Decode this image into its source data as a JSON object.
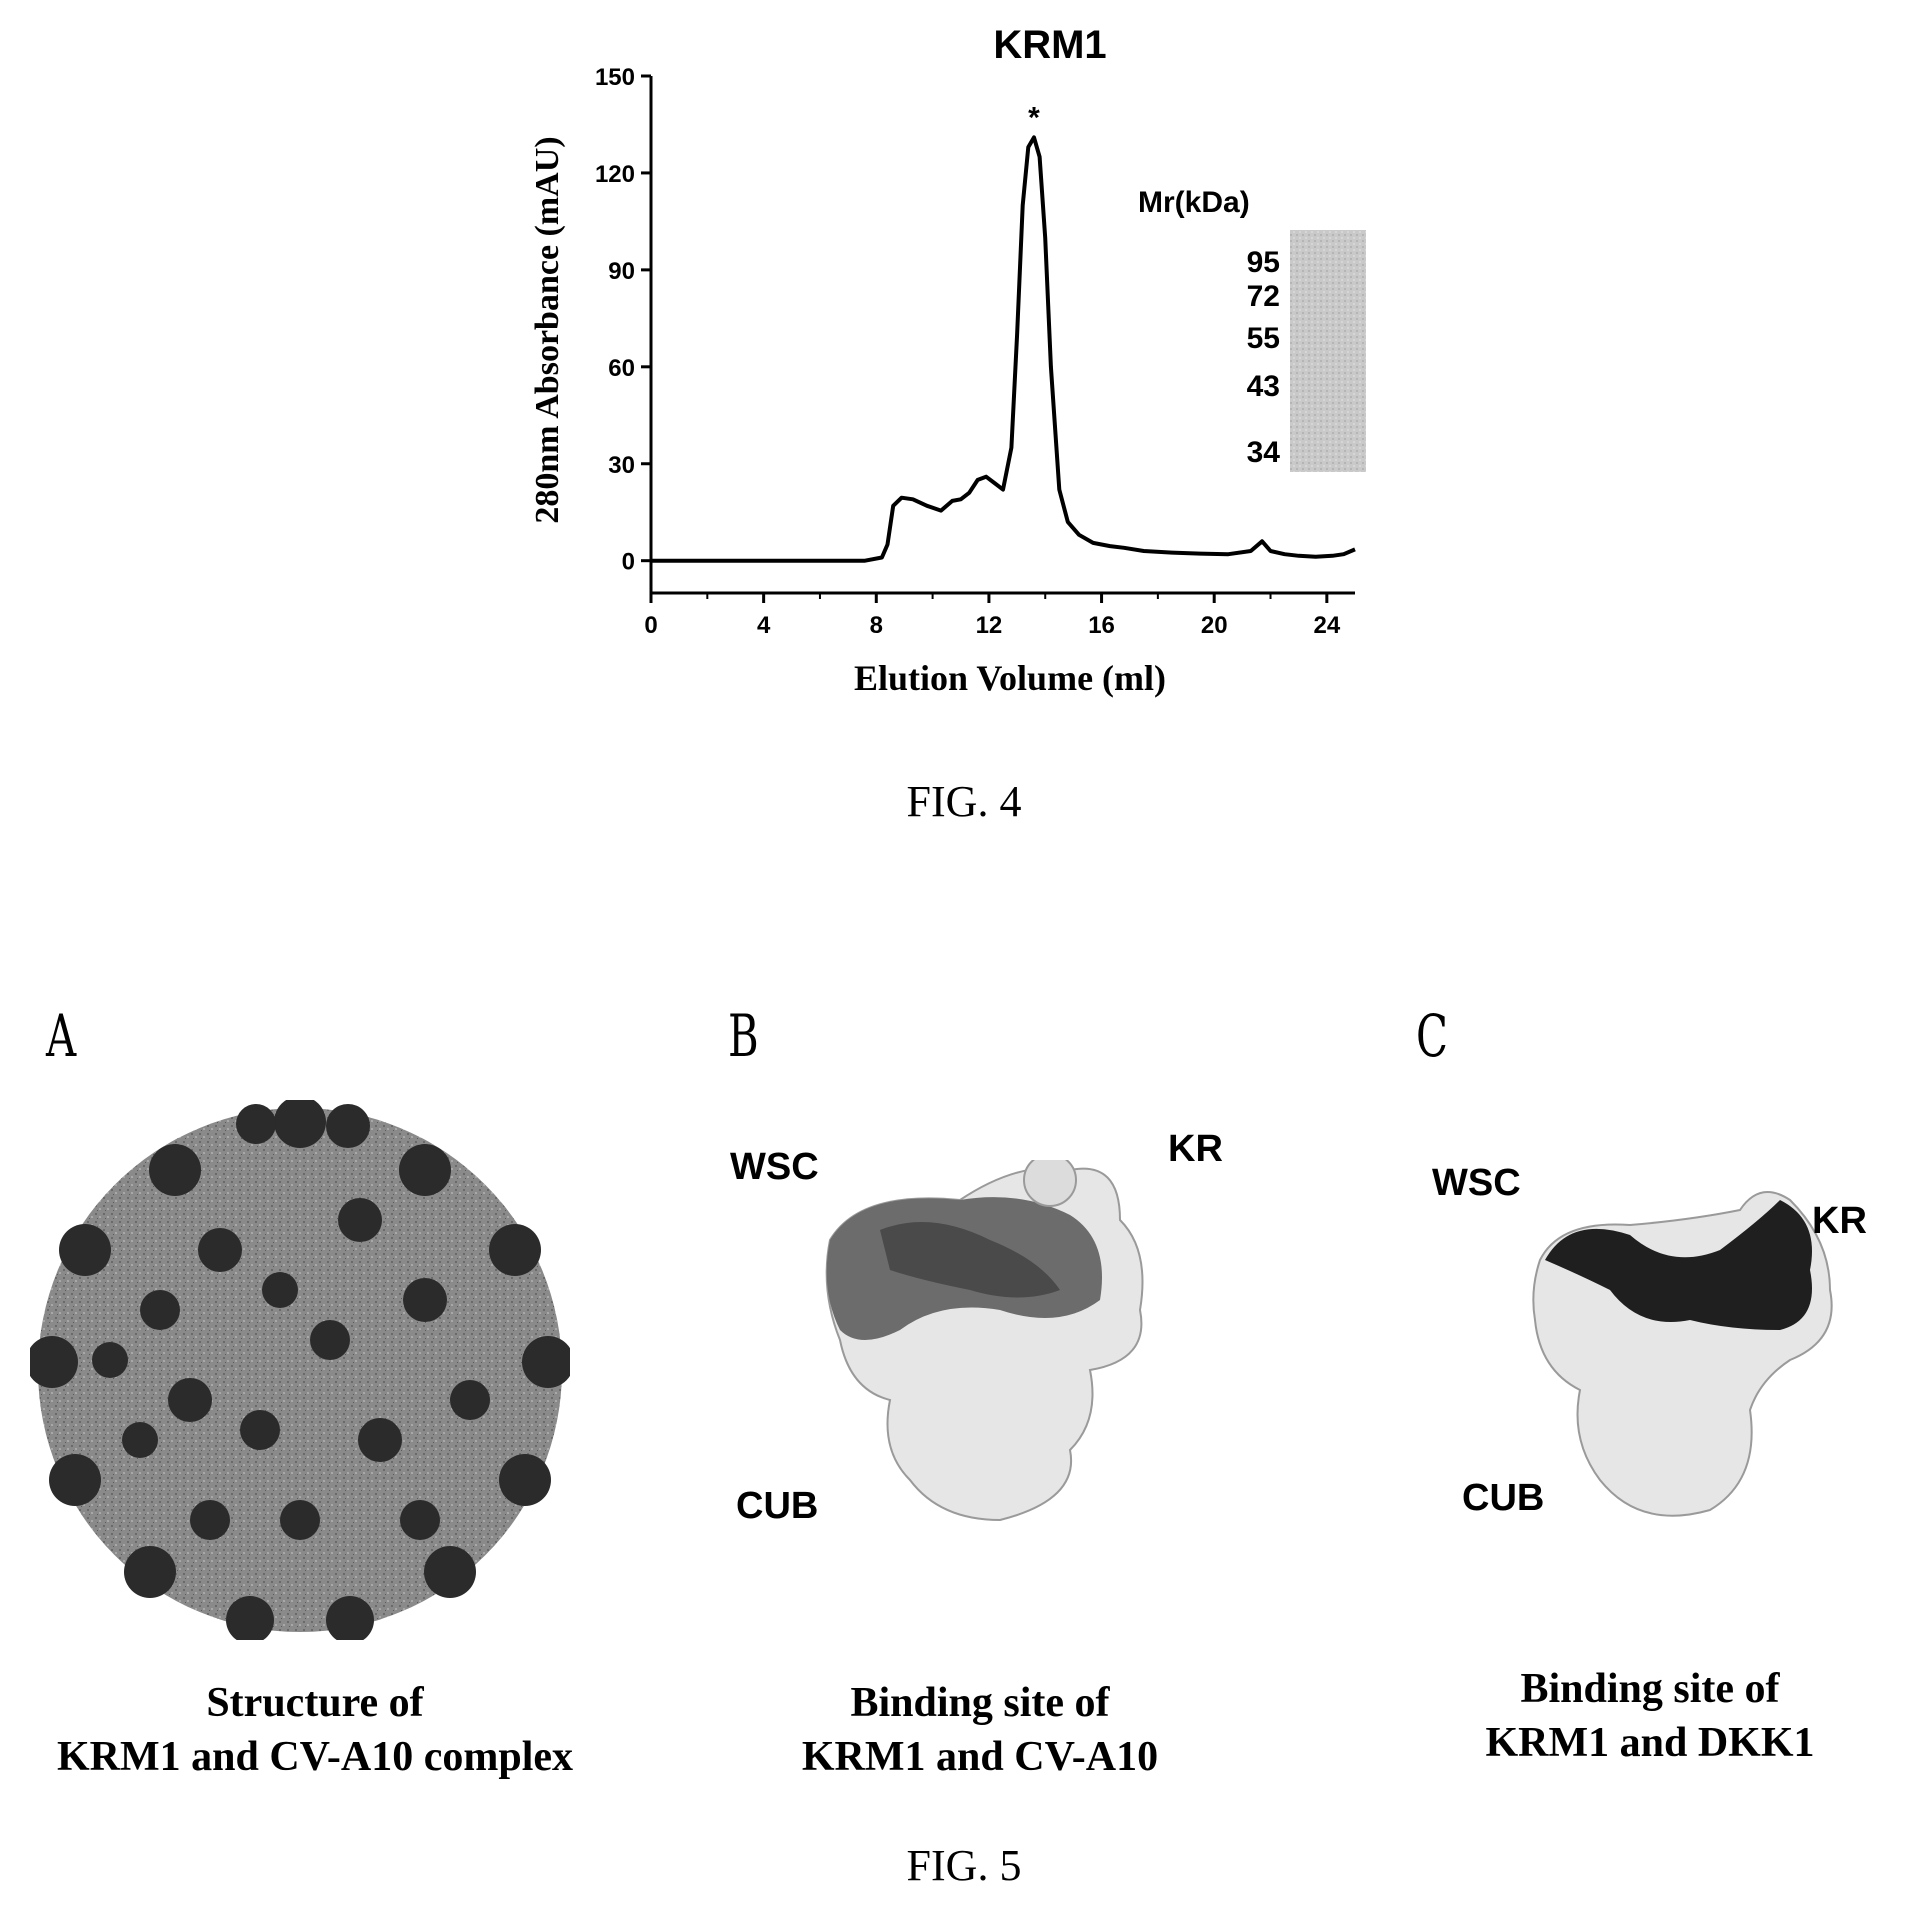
{
  "fig4": {
    "caption": "FIG. 4",
    "chart_data": {
      "type": "line",
      "title": "KRM1",
      "xlabel": "Elution Volume (ml)",
      "ylabel": "280nm Absorbance (mAU)",
      "xlim": [
        0,
        25
      ],
      "ylim": [
        -10,
        150
      ],
      "x_ticks": [
        0,
        4,
        8,
        12,
        16,
        20,
        24
      ],
      "y_ticks": [
        0,
        30,
        60,
        90,
        120,
        150
      ],
      "series": [
        {
          "x": [
            0,
            7.6,
            8.2,
            8.4,
            8.6,
            8.9,
            9.3,
            9.8,
            10.3,
            10.7,
            11.0,
            11.3,
            11.6,
            11.9,
            12.2,
            12.5,
            12.8,
            13.0,
            13.2,
            13.4,
            13.6,
            13.8,
            14.0,
            14.2,
            14.5,
            14.8,
            15.2,
            15.7,
            16.3,
            16.8,
            17.5,
            18.5,
            19.5,
            20.5,
            21.3,
            21.7,
            22.0,
            22.5,
            23.0,
            23.6,
            24.2,
            24.6,
            25.0
          ],
          "y": [
            0,
            0,
            1,
            5,
            17,
            19.5,
            19,
            17,
            15.5,
            18.5,
            19,
            21,
            25,
            26,
            24,
            22,
            35,
            70,
            110,
            128,
            131,
            125,
            100,
            60,
            22,
            12,
            8,
            5.5,
            4.5,
            4,
            3,
            2.5,
            2.2,
            2,
            3,
            6,
            3,
            2,
            1.5,
            1.2,
            1.5,
            2,
            3.5
          ]
        }
      ],
      "annotations": [
        "*"
      ],
      "gel": {
        "header": "Mr(kDa)",
        "markers": [
          "95",
          "72",
          "55",
          "43",
          "34"
        ]
      }
    }
  },
  "fig5": {
    "caption": "FIG. 5",
    "panels": [
      {
        "letter": "A",
        "caption_line1": "Structure of",
        "caption_line2": "KRM1 and CV-A10 complex"
      },
      {
        "letter": "B",
        "caption_line1": "Binding site of",
        "caption_line2": "KRM1 and CV-A10",
        "domain_labels": {
          "wsc": "WSC",
          "kr": "KR",
          "cub": "CUB"
        }
      },
      {
        "letter": "C",
        "caption_line1": "Binding site of",
        "caption_line2": "KRM1 and DKK1",
        "domain_labels": {
          "wsc": "WSC",
          "kr": "KR",
          "cub": "CUB"
        }
      }
    ]
  }
}
